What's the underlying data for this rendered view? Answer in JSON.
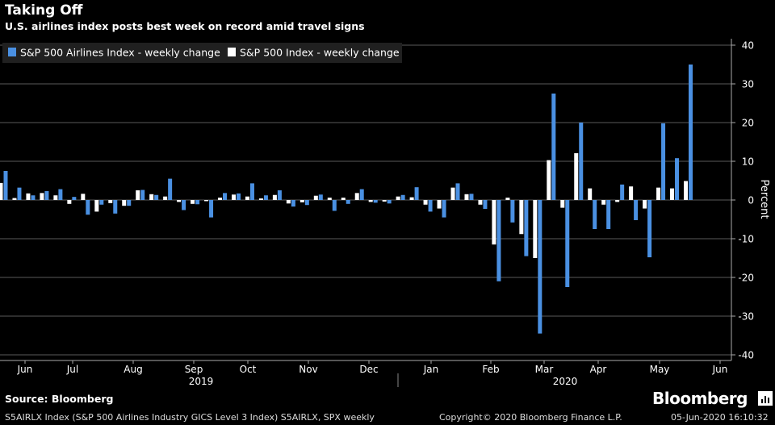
{
  "header": {
    "title": "Taking Off",
    "subtitle": "U.S. airlines index posts best week on record amid travel signs"
  },
  "footer": {
    "source": "Source: Bloomberg",
    "logo": "Bloomberg",
    "footnote": "S5AIRLX Index (S&P 500 Airlines Industry GICS Level 3 Index) S5AIRLX, SPX weekly",
    "copyright": "Copyright© 2020 Bloomberg Finance L.P.",
    "timestamp": "05-Jun-2020 16:10:32"
  },
  "colors": {
    "background": "#000000",
    "airlines": "#4a90e2",
    "spx": "#ffffff",
    "grid": "#5a5a5a"
  },
  "chart_data": {
    "type": "bar",
    "ylabel": "Percent",
    "ylim": [
      -40,
      40
    ],
    "yticks": [
      40,
      30,
      20,
      10,
      0,
      -10,
      -20,
      -30,
      -40
    ],
    "y_axis_side": "right",
    "legend_position": "top-left",
    "grid": true,
    "x_month_labels": [
      "Jun",
      "Jul",
      "Aug",
      "Sep",
      "Oct",
      "Nov",
      "Dec",
      "Jan",
      "Feb",
      "Mar",
      "Apr",
      "May",
      "Jun"
    ],
    "x_year_labels": [
      "2019",
      "2020"
    ],
    "series": [
      {
        "name": "S&P 500 Airlines Index - weekly change",
        "values": [
          7.5,
          3.2,
          1.2,
          2.3,
          2.8,
          0.8,
          -3.8,
          -1.2,
          -3.5,
          -1.5,
          2.6,
          1.3,
          5.5,
          -2.6,
          -1.1,
          -4.5,
          1.8,
          1.7,
          4.3,
          1.2,
          2.5,
          -1.7,
          -1.3,
          1.4,
          -2.8,
          -1.0,
          2.8,
          -0.7,
          -0.9,
          1.3,
          3.3,
          -3.0,
          -4.5,
          4.3,
          1.6,
          -2.3,
          -21.0,
          -5.8,
          -14.5,
          -34.5,
          27.5,
          -22.5,
          20.0,
          -7.5,
          -7.5,
          4.0,
          -5.2,
          -14.8,
          19.8,
          10.8,
          35.0
        ]
      },
      {
        "name": "S&P 500 Index - weekly change",
        "values": [
          4.4,
          0.5,
          1.7,
          1.8,
          1.2,
          -1.0,
          1.6,
          -3.0,
          -0.8,
          -1.5,
          2.5,
          1.5,
          0.9,
          -0.5,
          -1.0,
          -0.3,
          0.6,
          1.4,
          0.9,
          0.4,
          1.3,
          -0.9,
          -0.6,
          1.1,
          0.6,
          0.6,
          1.8,
          -0.5,
          -0.4,
          0.9,
          0.7,
          -1.2,
          -2.2,
          3.2,
          1.5,
          -1.2,
          -11.5,
          0.6,
          -8.8,
          -15.0,
          10.3,
          -2.0,
          12.1,
          3.0,
          -1.2,
          -0.5,
          3.5,
          -2.2,
          3.2,
          3.0,
          4.9
        ]
      }
    ]
  }
}
